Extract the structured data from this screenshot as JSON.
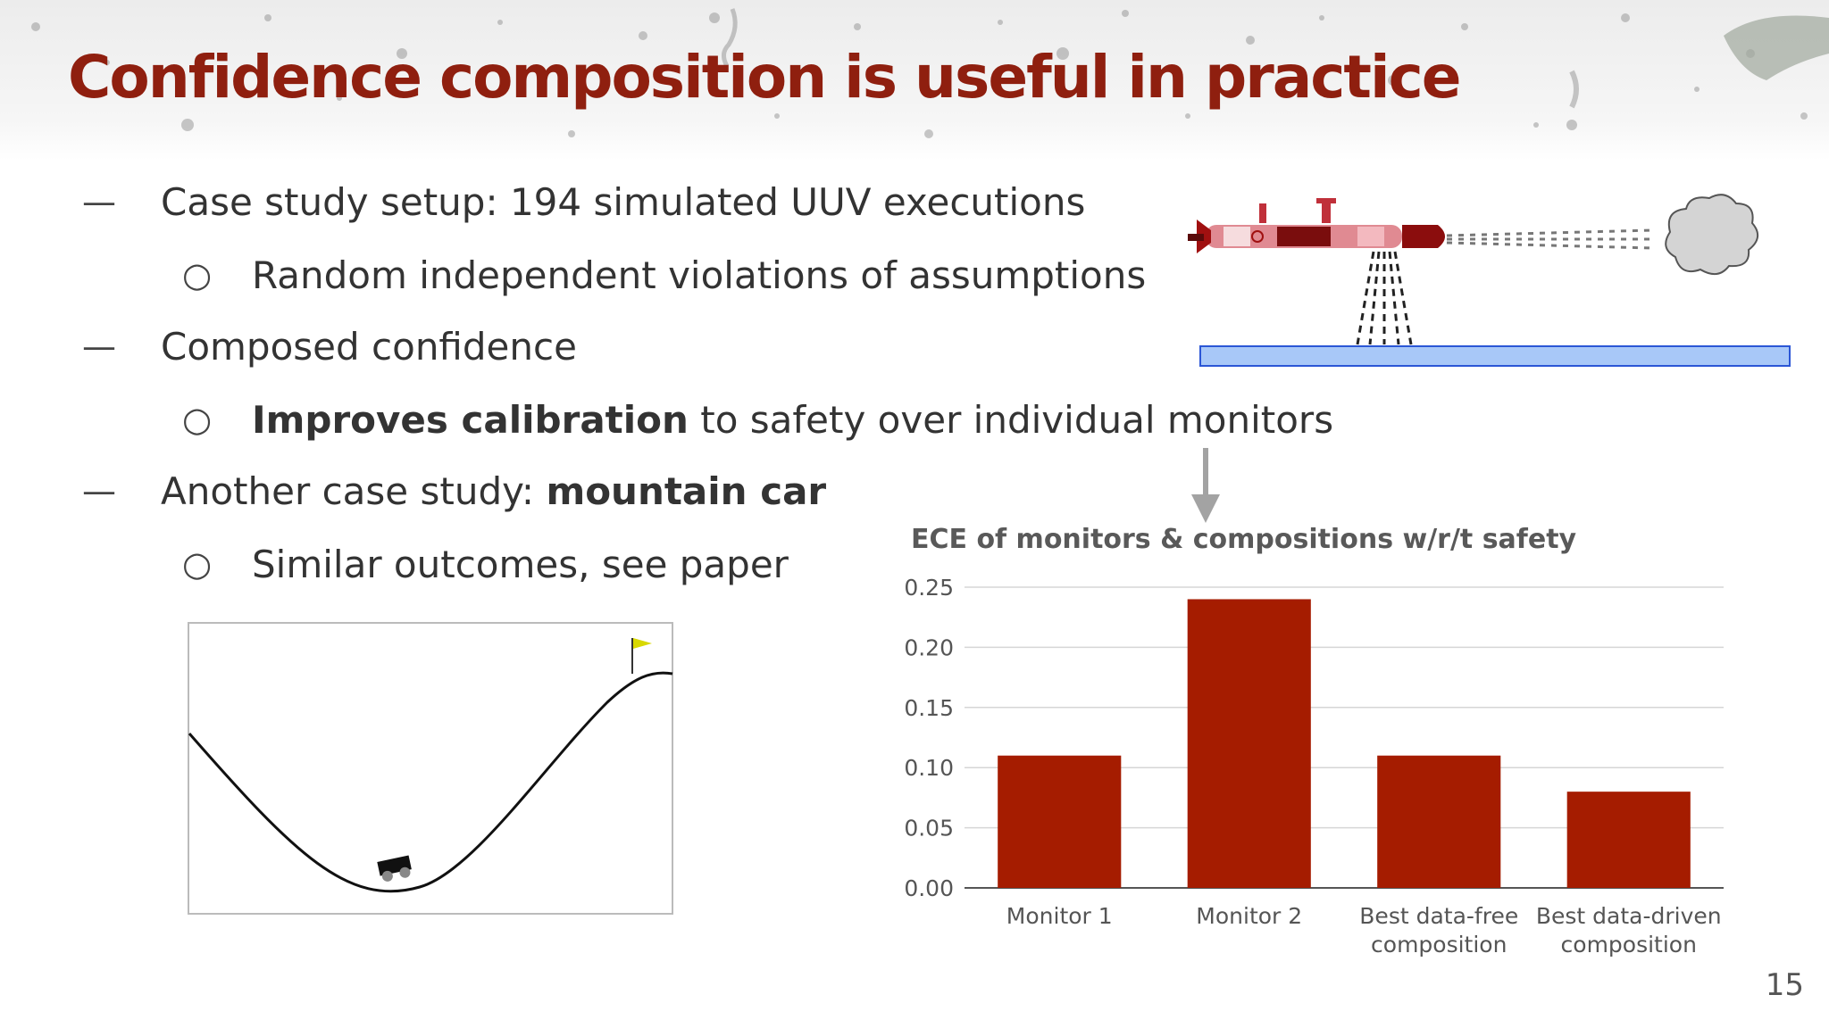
{
  "title": "Confidence composition is useful in practice",
  "bullets": [
    {
      "level": 1,
      "marker": "—",
      "text": "Case study setup: 194 simulated UUV executions"
    },
    {
      "level": 2,
      "marker": "○",
      "text": "Random independent violations of assumptions"
    },
    {
      "level": 1,
      "marker": "—",
      "text": "Composed confidence"
    },
    {
      "level": 2,
      "marker": "○",
      "bold": "Improves calibration",
      "text": " to safety over individual monitors"
    },
    {
      "level": 1,
      "marker": "—",
      "text_prefix": "Another case study: ",
      "bold": "mountain car"
    },
    {
      "level": 2,
      "marker": "○",
      "text": "Similar outcomes, see paper"
    }
  ],
  "page_number": "15",
  "colors": {
    "title": "#8f1f0f",
    "bar": "#a51c00",
    "seabed_fill": "#a8c8f8",
    "seabed_stroke": "#2b56d6",
    "arrow": "#a3a3a3"
  },
  "icons": [
    "uuv-vehicle-image",
    "sonar-cloud-icon",
    "mountain-car-image",
    "goal-flag-icon",
    "down-arrow-icon"
  ],
  "chart_data": {
    "type": "bar",
    "title": "ECE of monitors & compositions w/r/t safety",
    "categories": [
      "Monitor 1",
      "Monitor 2",
      "Best data-free composition",
      "Best data-driven composition"
    ],
    "category_lines": [
      [
        "Monitor 1"
      ],
      [
        "Monitor 2"
      ],
      [
        "Best data-free",
        "composition"
      ],
      [
        "Best data-driven",
        "composition"
      ]
    ],
    "values": [
      0.11,
      0.24,
      0.11,
      0.08
    ],
    "ylim": [
      0,
      0.25
    ],
    "yticks": [
      "0.00",
      "0.05",
      "0.10",
      "0.15",
      "0.20",
      "0.25"
    ],
    "grid": true,
    "legend": "none",
    "xlabel": "",
    "ylabel": ""
  }
}
